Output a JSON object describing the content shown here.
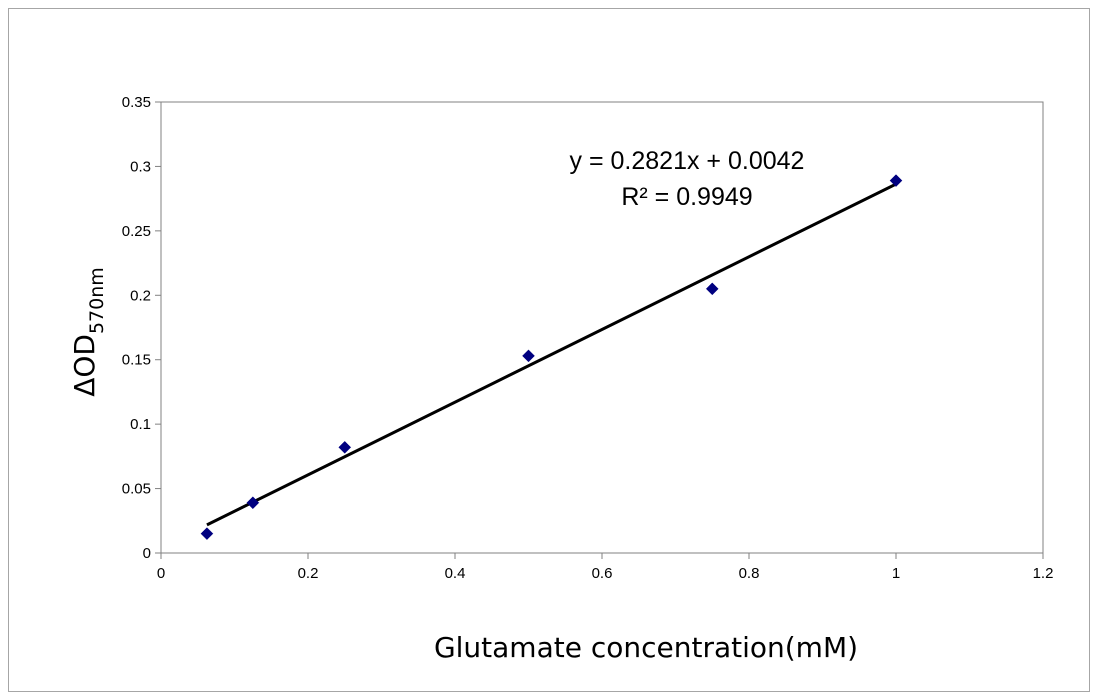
{
  "chart_data": {
    "type": "scatter",
    "title": "",
    "xlabel": "Glutamate concentration(mM)",
    "ylabel": {
      "main": "ΔOD",
      "subscript": "570nm"
    },
    "xlim": [
      0,
      1.2
    ],
    "ylim": [
      0,
      0.35
    ],
    "x_ticks": [
      0,
      0.2,
      0.4,
      0.6,
      0.8,
      1,
      1.2
    ],
    "x_tick_labels": [
      "0",
      "0.2",
      "0.4",
      "0.6",
      "0.8",
      "1",
      "1.2"
    ],
    "y_ticks": [
      0,
      0.05,
      0.1,
      0.15,
      0.2,
      0.25,
      0.3,
      0.35
    ],
    "y_tick_labels": [
      "0",
      "0.05",
      "0.1",
      "0.15",
      "0.2",
      "0.25",
      "0.3",
      "0.35"
    ],
    "grid": false,
    "legend": "none",
    "marker_color": "#000080",
    "trendline_color": "#000000",
    "series": [
      {
        "points": [
          {
            "x": 0.0625,
            "y": 0.015
          },
          {
            "x": 0.125,
            "y": 0.039
          },
          {
            "x": 0.25,
            "y": 0.082
          },
          {
            "x": 0.5,
            "y": 0.153
          },
          {
            "x": 0.75,
            "y": 0.205
          },
          {
            "x": 1,
            "y": 0.289
          }
        ]
      }
    ],
    "trendline": {
      "slope": 0.2821,
      "intercept": 0.0042,
      "x_range": [
        0.0625,
        1
      ],
      "equation_text": "y = 0.2821x + 0.0042",
      "r2_text": "R² = 0.9949"
    }
  }
}
